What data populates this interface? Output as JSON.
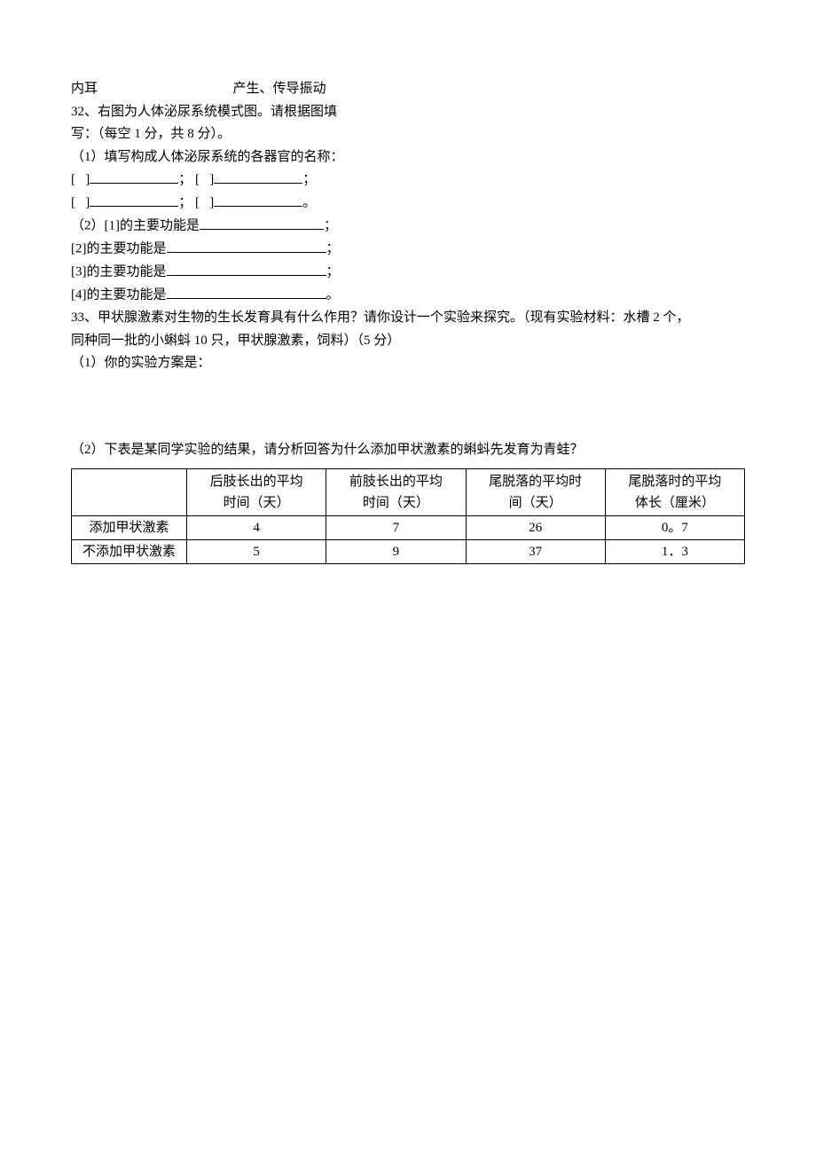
{
  "colors": {
    "background": "#ffffff",
    "text": "#000000",
    "border": "#000000"
  },
  "typography": {
    "font_family": "SimSun",
    "body_fontsize_pt": 11,
    "line_height": 1.7
  },
  "lines": {
    "l1_left": "内耳",
    "l1_right": "产生、传导振动",
    "q32_intro_a": "32、右图为人体泌尿系统模式图。请根据图填",
    "q32_intro_b": "写：（每空 1 分，共 8 分）。",
    "q32_1_head": "（1）填写构成人体泌尿系统的各器官的名称：",
    "bracket_open": "[",
    "bracket_close": "]",
    "semicolon": "；",
    "period": "。",
    "q32_2_head": "（2）[1]的主要功能是",
    "q32_func2": "[2]的主要功能是",
    "q32_func3": "[3]的主要功能是",
    "q32_func4": "[4]的主要功能是",
    "q33_a": "33、甲状腺激素对生物的生长发育具有什么作用？请你设计一个实验来探究。（现有实验材料：水槽 2 个，",
    "q33_b": "同种同一批的小蝌蚪 10 只，甲状腺激素，饲料）（5 分）",
    "q33_1": "（1）你的实验方案是：",
    "q33_2": "（2）下表是某同学实验的结果，请分析回答为什么添加甲状激素的蝌蚪先发育为青蛙？"
  },
  "table": {
    "type": "table",
    "border_color": "#000000",
    "columns": [
      {
        "h1": "",
        "h2": ""
      },
      {
        "h1": "后肢长出的平均",
        "h2": "时间（天）"
      },
      {
        "h1": "前肢长出的平均",
        "h2": "时间（天）"
      },
      {
        "h1": "尾脱落的平均时",
        "h2": "间（天）"
      },
      {
        "h1": "尾脱落时的平均",
        "h2": "体长（厘米）"
      }
    ],
    "rows": [
      {
        "label": "添加甲状激素",
        "c1": "4",
        "c2": "7",
        "c3": "26",
        "c4": "0。7"
      },
      {
        "label": "不添加甲状激素",
        "c1": "5",
        "c2": "9",
        "c3": "37",
        "c4": "1．3"
      }
    ]
  }
}
